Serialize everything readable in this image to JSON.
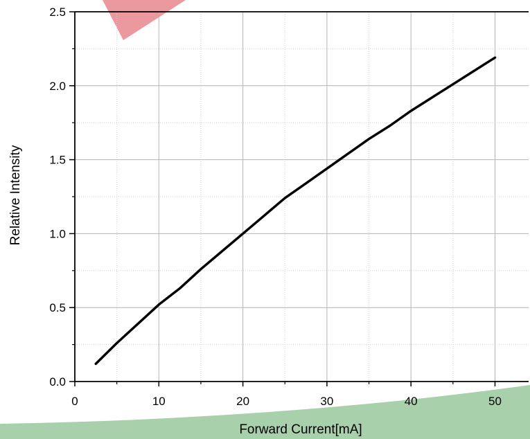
{
  "colors": {
    "line": "#000000",
    "grid": "#b4b4b4",
    "watermark_red": "#e8868d",
    "watermark_green": "#9fcca2"
  },
  "chart_data": {
    "type": "line",
    "title": "",
    "xlabel": "Forward Current[mA]",
    "ylabel": "Relative Intensity",
    "xlim": [
      0,
      54
    ],
    "ylim": [
      0,
      2.5
    ],
    "x_ticks": [
      "0",
      "10",
      "20",
      "30",
      "40",
      "50"
    ],
    "y_ticks": [
      "0.0",
      "0.5",
      "1.0",
      "1.5",
      "2.0",
      "2.5"
    ],
    "grid": true,
    "legend": "none",
    "series": [
      {
        "x": [
          2.5,
          5,
          7.5,
          10,
          12.5,
          15,
          17.5,
          20,
          22.5,
          25,
          27.5,
          30,
          32.5,
          35,
          37.5,
          40,
          42.5,
          45,
          47.5,
          50
        ],
        "y": [
          0.12,
          0.26,
          0.39,
          0.52,
          0.63,
          0.76,
          0.88,
          1.0,
          1.12,
          1.24,
          1.34,
          1.44,
          1.54,
          1.64,
          1.73,
          1.83,
          1.92,
          2.01,
          2.1,
          2.19
        ]
      }
    ]
  }
}
